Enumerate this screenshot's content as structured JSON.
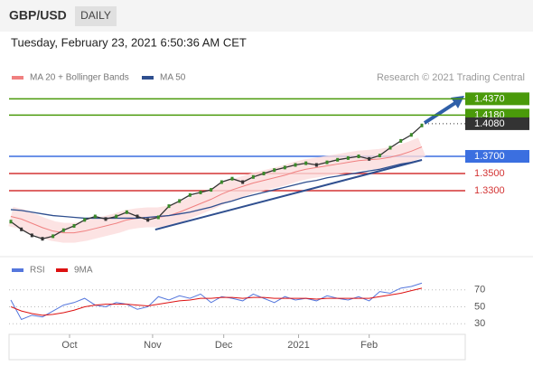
{
  "header": {
    "symbol": "GBP/USD",
    "interval": "DAILY",
    "timestamp": "Tuesday, February 23, 2021 6:50:36 AM CET",
    "credit": "Research © 2021 Trading Central"
  },
  "chart_data": [
    {
      "type": "line",
      "color": "#333333",
      "values": [
        1.294,
        1.285,
        1.278,
        1.274,
        1.277,
        1.284,
        1.289,
        1.296,
        1.3,
        1.297,
        1.3,
        1.305,
        1.3,
        1.296,
        1.299,
        1.312,
        1.318,
        1.325,
        1.328,
        1.331,
        1.34,
        1.344,
        1.34,
        1.346,
        1.35,
        1.354,
        1.357,
        1.36,
        1.362,
        1.36,
        1.363,
        1.366,
        1.368,
        1.37,
        1.367,
        1.371,
        1.38,
        1.388,
        1.395,
        1.406
      ],
      "series": [
        {
          "name": "MA 20 + Bollinger Bands",
          "color": "#f08080",
          "values": [
            1.3,
            1.297,
            1.292,
            1.287,
            1.283,
            1.281,
            1.281,
            1.283,
            1.286,
            1.289,
            1.292,
            1.296,
            1.298,
            1.299,
            1.299,
            1.301,
            1.305,
            1.31,
            1.315,
            1.32,
            1.326,
            1.331,
            1.335,
            1.339,
            1.342,
            1.345,
            1.348,
            1.352,
            1.355,
            1.357,
            1.359,
            1.361,
            1.363,
            1.365,
            1.366,
            1.367,
            1.369,
            1.372,
            1.376,
            1.381
          ]
        },
        {
          "name": "MA 50",
          "color": "#2f4f8f",
          "values": [
            1.308,
            1.307,
            1.305,
            1.303,
            1.301,
            1.3,
            1.299,
            1.298,
            1.298,
            1.298,
            1.298,
            1.298,
            1.298,
            1.299,
            1.3,
            1.301,
            1.303,
            1.305,
            1.308,
            1.311,
            1.315,
            1.318,
            1.322,
            1.325,
            1.328,
            1.331,
            1.334,
            1.337,
            1.34,
            1.342,
            1.345,
            1.347,
            1.349,
            1.351,
            1.353,
            1.355,
            1.358,
            1.361,
            1.363,
            1.366
          ]
        }
      ],
      "levels": [
        {
          "value": 1.437,
          "label": "1.4370",
          "color": "#4a9a0a",
          "line": "solid",
          "box": true
        },
        {
          "value": 1.418,
          "label": "1.4180",
          "color": "#4a9a0a",
          "line": "solid",
          "box": true
        },
        {
          "value": 1.408,
          "label": "1.4080",
          "color": "#333333",
          "line": "dotted",
          "box": true
        },
        {
          "value": 1.37,
          "label": "1.3700",
          "color": "#3b6fe0",
          "line": "solid",
          "box": true
        },
        {
          "value": 1.35,
          "label": "1.3500",
          "color": "#d33333",
          "line": "solid",
          "box": false
        },
        {
          "value": 1.33,
          "label": "1.3300",
          "color": "#d33333",
          "line": "solid",
          "box": false
        }
      ],
      "trendline": {
        "x": [
          13.7,
          39
        ],
        "values": [
          1.2847,
          1.3658
        ],
        "color": "#2f4f8f"
      },
      "xlim": [
        0,
        39
      ],
      "ylim": [
        1.2574,
        1.4521
      ]
    },
    {
      "type": "line",
      "series": [
        {
          "name": "RSI",
          "color": "#5577dd",
          "values": [
            58,
            35,
            40,
            38,
            45,
            52,
            55,
            60,
            52,
            50,
            55,
            53,
            47,
            50,
            62,
            58,
            63,
            60,
            65,
            55,
            62,
            60,
            57,
            65,
            60,
            55,
            62,
            58,
            60,
            57,
            63,
            60,
            58,
            62,
            57,
            68,
            66,
            72,
            74,
            78
          ]
        },
        {
          "name": "9MA",
          "color": "#dd1111",
          "values": [
            50,
            45,
            42,
            40,
            41,
            43,
            46,
            50,
            52,
            53,
            53,
            53,
            52,
            51,
            53,
            55,
            57,
            58,
            60,
            60,
            61,
            61,
            60,
            61,
            61,
            60,
            60,
            60,
            60,
            59,
            60,
            60,
            60,
            60,
            60,
            62,
            64,
            66,
            69,
            72
          ]
        }
      ],
      "xlim": [
        0,
        39
      ],
      "ylim": [
        17.4,
        86.8
      ],
      "yticks": [
        70,
        50,
        30
      ],
      "xticks": [
        {
          "value": 5.57,
          "label": "Oct"
        },
        {
          "value": 13.45,
          "label": "Nov"
        },
        {
          "value": 20.2,
          "label": "Dec"
        },
        {
          "value": 27.3,
          "label": "2021"
        },
        {
          "value": 34.0,
          "label": "Feb"
        }
      ]
    }
  ]
}
